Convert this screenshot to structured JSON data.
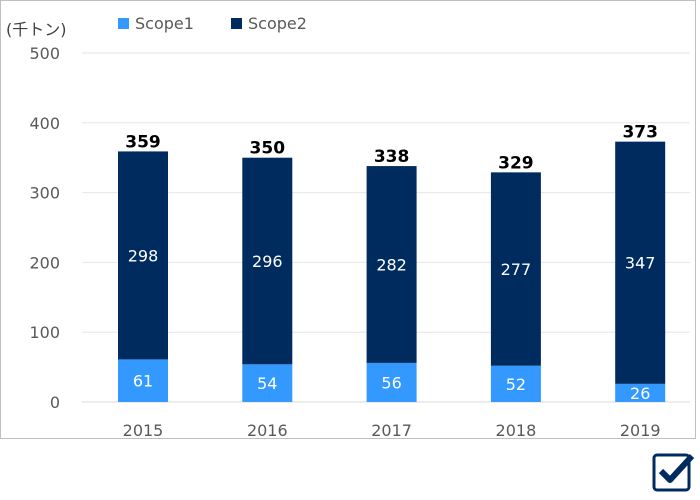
{
  "chart_data": {
    "type": "bar",
    "stacked": true,
    "unit_label": "(千トン)",
    "categories": [
      "2015",
      "2016",
      "2017",
      "2018",
      "2019"
    ],
    "series": [
      {
        "name": "Scope1",
        "color": "#3399ff",
        "values": [
          61,
          54,
          56,
          52,
          26
        ]
      },
      {
        "name": "Scope2",
        "color": "#002b5f",
        "values": [
          298,
          296,
          282,
          277,
          347
        ]
      }
    ],
    "totals": [
      359,
      350,
      338,
      329,
      373
    ],
    "ylim": [
      0,
      500
    ],
    "yticks": [
      0,
      100,
      200,
      300,
      400,
      500
    ],
    "grid": true,
    "legend_position": "top"
  },
  "icons": {
    "corner": "checkbox-checked-icon"
  }
}
